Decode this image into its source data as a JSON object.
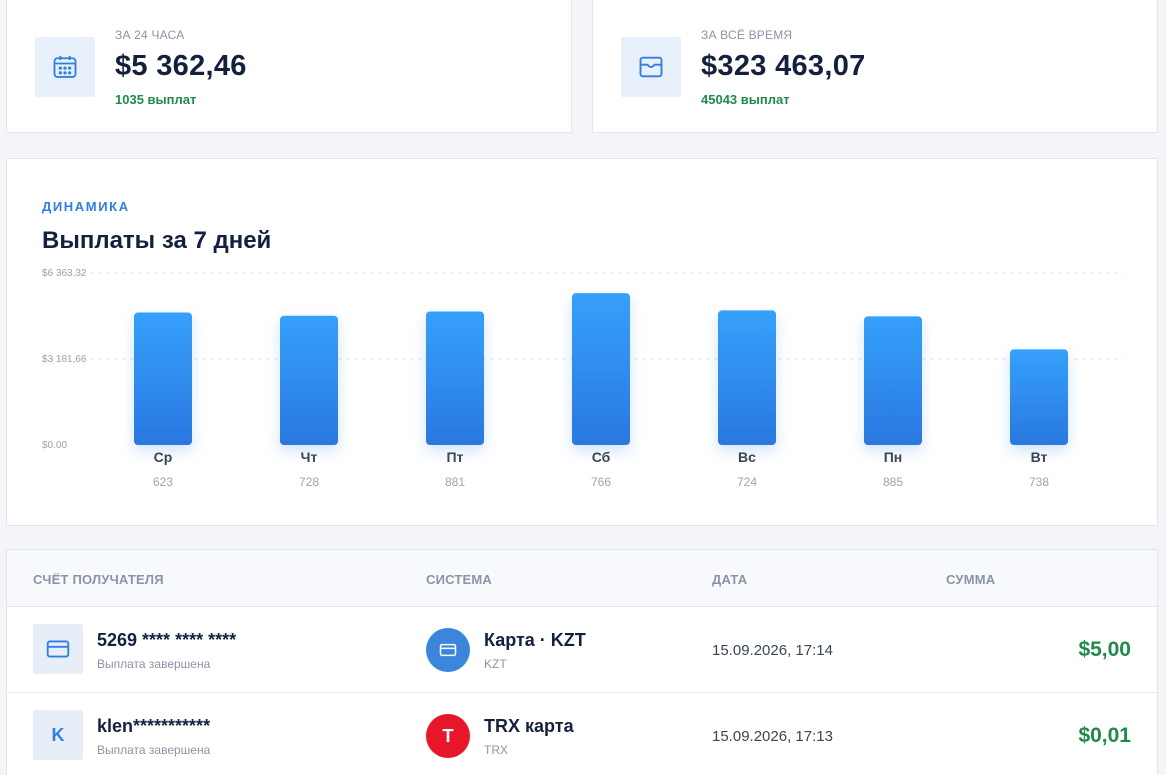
{
  "stats": [
    {
      "label": "ЗА 24 ЧАСА",
      "value": "$5 362,46",
      "sub": "1035 выплат",
      "icon": "calendar-icon"
    },
    {
      "label": "ЗА ВСЁ ВРЕМЯ",
      "value": "$323 463,07",
      "sub": "45043 выплат",
      "icon": "wallet-icon"
    }
  ],
  "chart": {
    "eyebrow": "ДИНАМИКА",
    "title": "Выплаты за 7 дней"
  },
  "chart_data": {
    "type": "bar",
    "categories": [
      "Ср",
      "Чт",
      "Пт",
      "Сб",
      "Вс",
      "Пн",
      "Вт"
    ],
    "values": [
      4900,
      4780,
      4940,
      5620,
      4980,
      4760,
      3540
    ],
    "counts": [
      "623",
      "728",
      "881",
      "766",
      "724",
      "885",
      "738"
    ],
    "yticks": [
      "$0.00",
      "$3 181,66",
      "$6 363,32"
    ],
    "ylim": [
      0,
      6363.32
    ],
    "bar_color": "#2f8cf0",
    "grid": true
  },
  "table": {
    "headers": [
      "СЧЁТ ПОЛУЧАТЕЛЯ",
      "СИСТЕМА",
      "ДАТА",
      "СУММА"
    ],
    "rows": [
      {
        "account": "5269 **** **** ****",
        "status": "Выплата завершена",
        "acc_icon": "card-icon",
        "acc_letter": "",
        "system": "Карта · KZT",
        "system_sub": "KZT",
        "sys_letter": "",
        "sys_icon": "card-icon",
        "sys_color": "#3a86db",
        "date": "15.09.2026, 17:14",
        "amount": "$5,00"
      },
      {
        "account": "klen***********",
        "status": "Выплата завершена",
        "acc_icon": "letter-k-icon",
        "acc_letter": "K",
        "system": "TRX карта",
        "system_sub": "TRX",
        "sys_letter": "T",
        "sys_icon": "tron-icon",
        "sys_color": "#e8162b",
        "date": "15.09.2026, 17:13",
        "amount": "$0,01"
      }
    ]
  },
  "colors": {
    "accent": "#2f7fe0",
    "success": "#1f8a4c",
    "text": "#14213d"
  }
}
